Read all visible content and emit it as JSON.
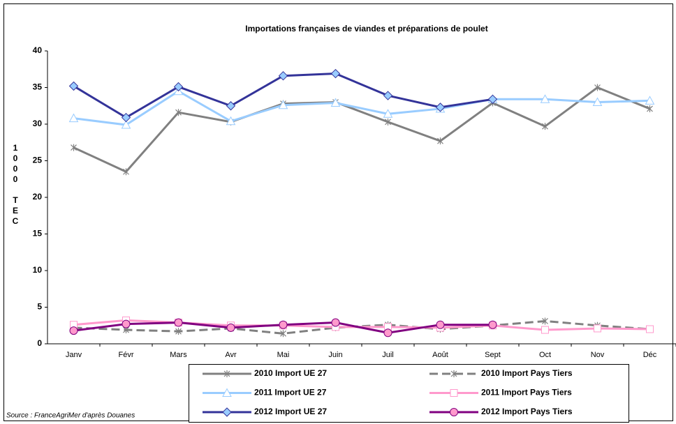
{
  "chart_data": {
    "type": "line",
    "title": "Importations françaises de viandes et préparations de poulet",
    "ylabel": "1000 TEC",
    "source": "Source : FranceAgriMer d'après Douanes",
    "categories": [
      "Janv",
      "Févr",
      "Mars",
      "Avr",
      "Mai",
      "Juin",
      "Juil",
      "Août",
      "Sept",
      "Oct",
      "Nov",
      "Déc"
    ],
    "ylim": [
      0,
      40
    ],
    "yticks": [
      0,
      5,
      10,
      15,
      20,
      25,
      30,
      35,
      40
    ],
    "series": [
      {
        "name": "2010 Import UE 27",
        "color": "#808080",
        "marker": "star",
        "marker_fill": "#808080",
        "dashed": false,
        "values": [
          26.8,
          23.5,
          31.6,
          30.3,
          32.8,
          33.0,
          30.3,
          27.7,
          32.9,
          29.7,
          35.0,
          32.1
        ]
      },
      {
        "name": "2010 Import Pays Tiers",
        "color": "#808080",
        "marker": "star",
        "marker_fill": "#808080",
        "dashed": true,
        "values": [
          2.2,
          1.9,
          1.7,
          2.1,
          1.4,
          2.2,
          2.6,
          2.0,
          2.5,
          3.1,
          2.5,
          2.0
        ]
      },
      {
        "name": "2011 Import UE 27",
        "color": "#99ccff",
        "marker": "triangle",
        "marker_fill": "#ffffff",
        "dashed": false,
        "values": [
          30.8,
          29.9,
          34.5,
          30.4,
          32.6,
          32.9,
          31.4,
          32.1,
          33.4,
          33.4,
          33.0,
          33.2
        ]
      },
      {
        "name": "2011 Import Pays Tiers",
        "color": "#ff99cc",
        "marker": "square",
        "marker_fill": "#ffffff",
        "dashed": false,
        "values": [
          2.6,
          3.2,
          2.9,
          2.5,
          2.5,
          2.3,
          2.3,
          2.2,
          2.5,
          1.9,
          2.1,
          2.0
        ]
      },
      {
        "name": "2012 Import UE 27",
        "color": "#333399",
        "marker": "diamond",
        "marker_fill": "#99ccff",
        "dashed": false,
        "values": [
          35.2,
          30.9,
          35.1,
          32.5,
          36.6,
          36.9,
          33.9,
          32.3,
          33.4,
          null,
          null,
          null
        ]
      },
      {
        "name": "2012 Import Pays Tiers",
        "color": "#800080",
        "marker": "circle",
        "marker_fill": "#ff99cc",
        "dashed": false,
        "values": [
          1.8,
          2.7,
          2.9,
          2.2,
          2.6,
          2.9,
          1.5,
          2.6,
          2.6,
          null,
          null,
          null
        ]
      }
    ]
  }
}
